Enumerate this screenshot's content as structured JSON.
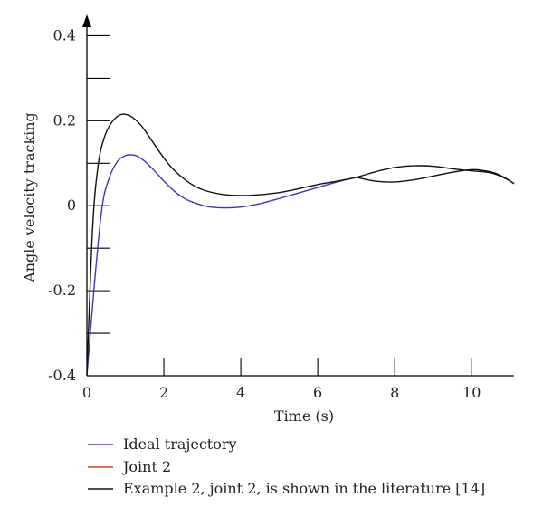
{
  "chart_data": {
    "type": "line",
    "title": "",
    "xlabel": "Time (s)",
    "ylabel": "Angle velocity tracking",
    "xlim": [
      0,
      11.1
    ],
    "ylim": [
      -0.4,
      0.45
    ],
    "grid": false,
    "legend_position": "bottom-left",
    "x_ticks": [
      0,
      2,
      4,
      6,
      8,
      10
    ],
    "x_tick_labels": [
      "0",
      "2",
      "4",
      "6",
      "8",
      "10"
    ],
    "y_ticks": [
      -0.4,
      -0.3,
      -0.2,
      -0.1,
      0,
      0.1,
      0.2,
      0.3,
      0.4
    ],
    "y_tick_labels": [
      "-0.4",
      "",
      "-0.2",
      "",
      "0",
      "",
      "0.2",
      "",
      "0.4"
    ],
    "series": [
      {
        "name": "Ideal trajectory",
        "color": "#3b3bb3",
        "x": [
          0,
          0.2,
          0.4,
          0.6,
          0.8,
          1.0,
          1.15,
          1.3,
          1.5,
          1.8,
          2.0,
          2.3,
          2.6,
          3.0,
          3.3,
          3.6,
          4.0,
          4.5,
          5.0,
          5.5,
          6.0,
          6.5,
          7.0
        ],
        "y": [
          -0.4,
          -0.18,
          0.0,
          0.07,
          0.105,
          0.118,
          0.12,
          0.117,
          0.105,
          0.078,
          0.058,
          0.032,
          0.014,
          0.001,
          -0.004,
          -0.005,
          -0.003,
          0.005,
          0.017,
          0.03,
          0.043,
          0.056,
          0.067
        ]
      },
      {
        "name": "Joint 2",
        "color": "#d9411e",
        "x": [],
        "y": []
      },
      {
        "name": "Example 2, joint 2, is shown in the literature [14]",
        "color": "#111111",
        "x": [
          0,
          0.15,
          0.3,
          0.45,
          0.6,
          0.75,
          0.9,
          1.05,
          1.2,
          1.4,
          1.6,
          1.9,
          2.2,
          2.6,
          3.0,
          3.5,
          4.0,
          4.5,
          5.0,
          5.5,
          6.0,
          6.5,
          7.0,
          7.5,
          8.0,
          8.5,
          9.0,
          9.5,
          10.0,
          10.3,
          10.6,
          10.9,
          11.1
        ],
        "y": [
          -0.4,
          -0.05,
          0.1,
          0.16,
          0.19,
          0.207,
          0.215,
          0.214,
          0.207,
          0.19,
          0.165,
          0.125,
          0.09,
          0.058,
          0.038,
          0.027,
          0.024,
          0.026,
          0.031,
          0.04,
          0.05,
          0.058,
          0.067,
          0.08,
          0.09,
          0.094,
          0.093,
          0.087,
          0.082,
          0.08,
          0.075,
          0.063,
          0.052
        ]
      },
      {
        "name": "",
        "color": "#111111",
        "x": [
          7.0,
          7.5,
          8.0,
          8.5,
          9.0,
          9.5,
          10.0,
          10.3,
          10.6,
          10.9,
          11.1
        ],
        "y": [
          0.067,
          0.058,
          0.056,
          0.061,
          0.07,
          0.079,
          0.085,
          0.083,
          0.077,
          0.064,
          0.052
        ]
      }
    ]
  }
}
